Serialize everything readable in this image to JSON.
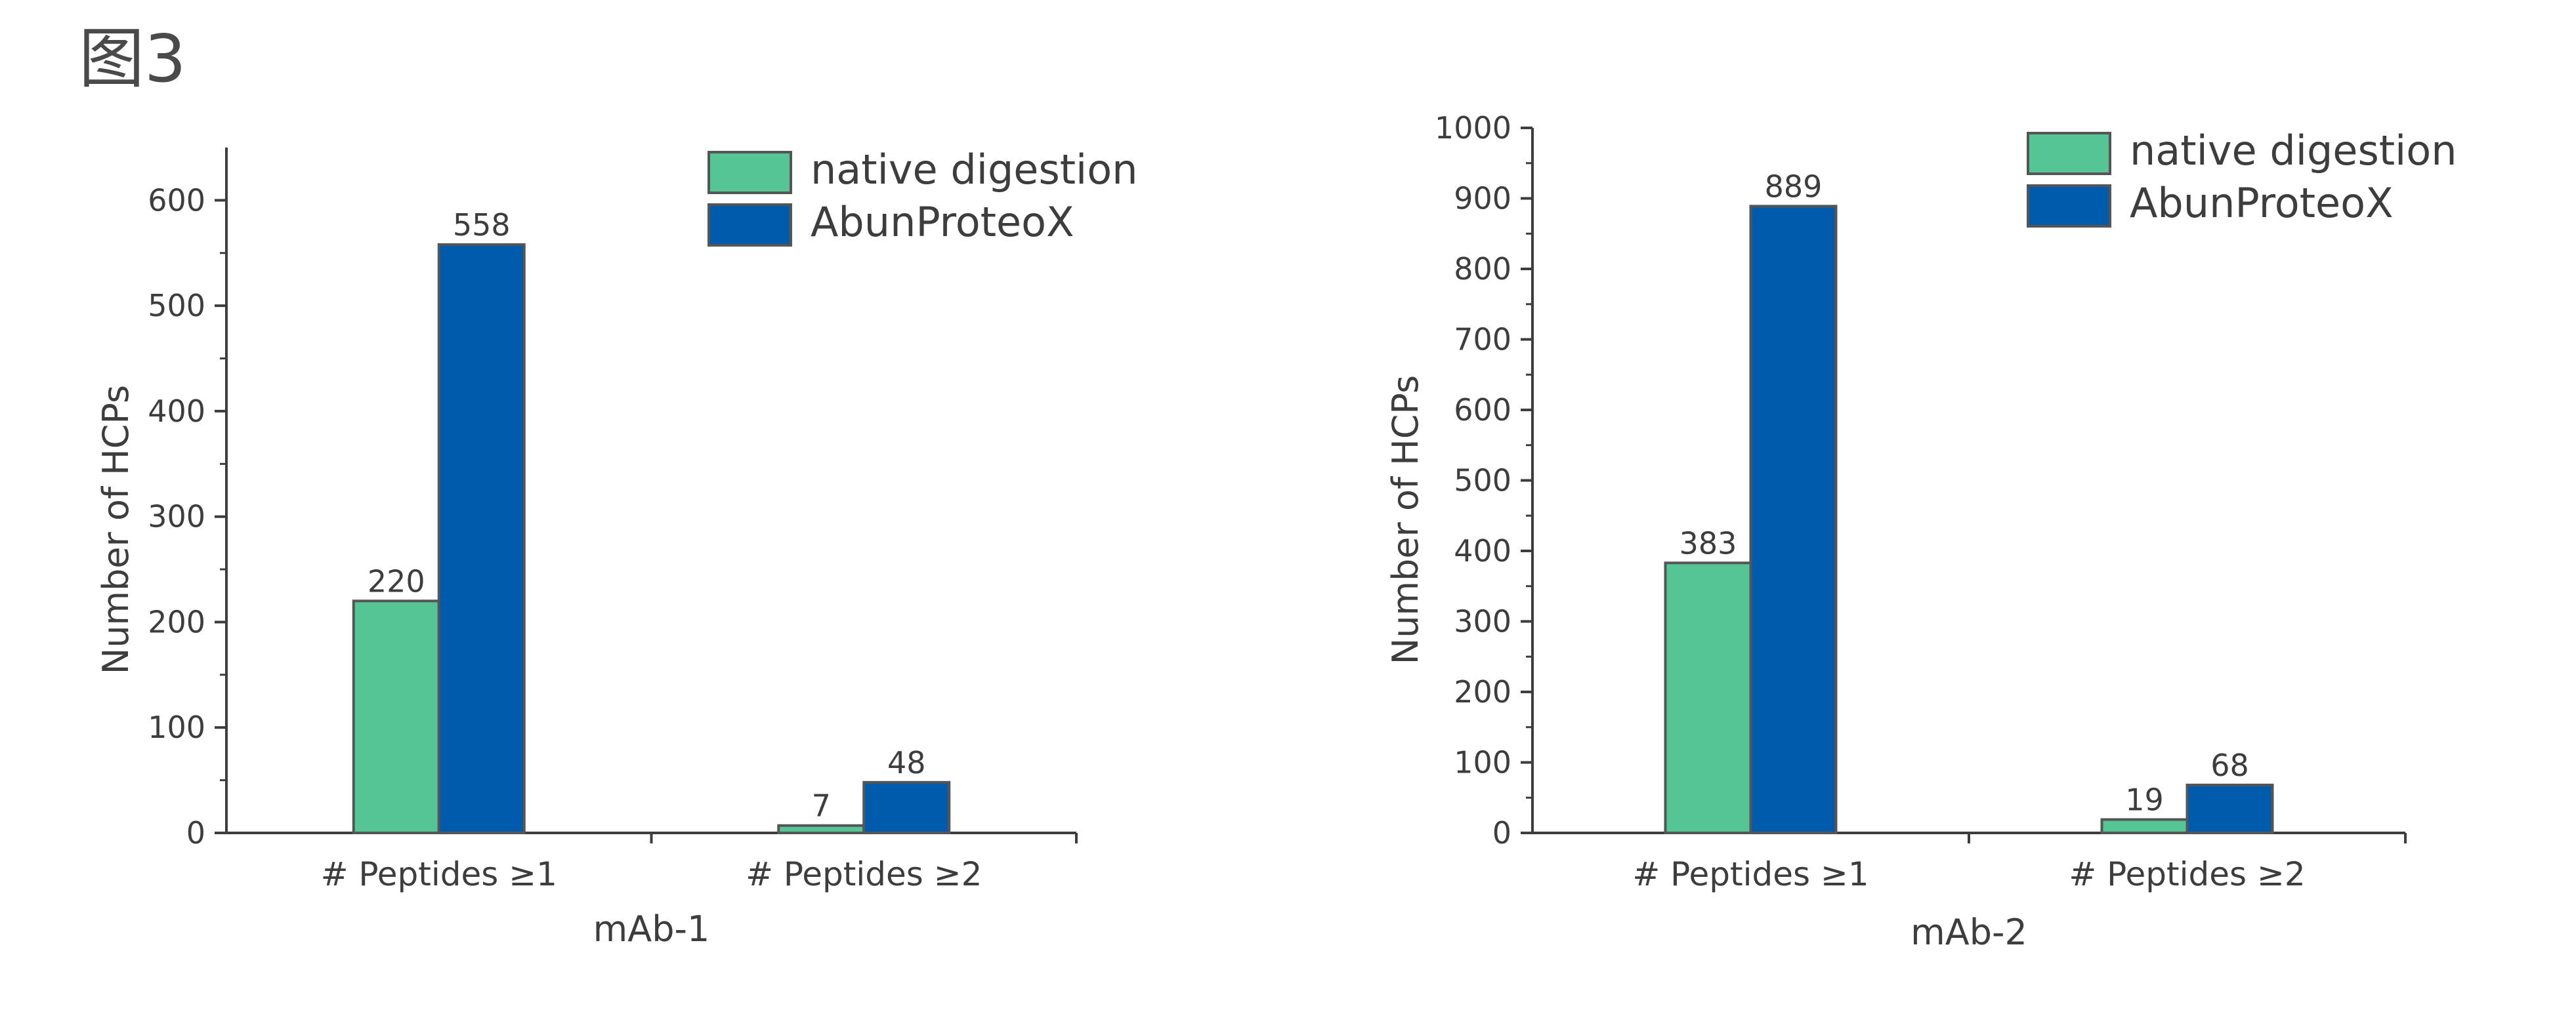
{
  "figure_label": "图3",
  "colors": {
    "native": "#56c595",
    "abun": "#005bac",
    "axis": "#3d3d3d",
    "bar_edge": "#555555"
  },
  "chart_data": [
    {
      "type": "bar",
      "title": "",
      "xlabel": "mAb-1",
      "ylabel": "Number of HCPs",
      "categories": [
        "# Peptides ≥1",
        "# Peptides ≥2"
      ],
      "series": [
        {
          "name": "native digestion",
          "values": [
            220,
            7
          ]
        },
        {
          "name": "AbunProteoX",
          "values": [
            558,
            48
          ]
        }
      ],
      "data_labels": [
        [
          "220",
          "7"
        ],
        [
          "558",
          "48"
        ]
      ],
      "yticks": [
        0,
        100,
        200,
        300,
        400,
        500,
        600
      ],
      "ytick_labels": [
        "0",
        "100",
        "200",
        "300",
        "400",
        "500",
        "600"
      ],
      "ylim": [
        0,
        650
      ],
      "legend": "top-right"
    },
    {
      "type": "bar",
      "title": "",
      "xlabel": "mAb-2",
      "ylabel": "Number of HCPs",
      "categories": [
        "# Peptides ≥1",
        "# Peptides ≥2"
      ],
      "series": [
        {
          "name": "native digestion",
          "values": [
            383,
            19
          ]
        },
        {
          "name": "AbunProteoX",
          "values": [
            889,
            68
          ]
        }
      ],
      "data_labels": [
        [
          "383",
          "19"
        ],
        [
          "889",
          "68"
        ]
      ],
      "yticks": [
        0,
        100,
        200,
        300,
        400,
        500,
        600,
        700,
        800,
        900,
        1000
      ],
      "ytick_labels": [
        "0",
        "100",
        "200",
        "300",
        "400",
        "500",
        "600",
        "700",
        "800",
        "900",
        "1000"
      ],
      "ylim": [
        0,
        1000
      ],
      "legend": "top-right"
    }
  ]
}
